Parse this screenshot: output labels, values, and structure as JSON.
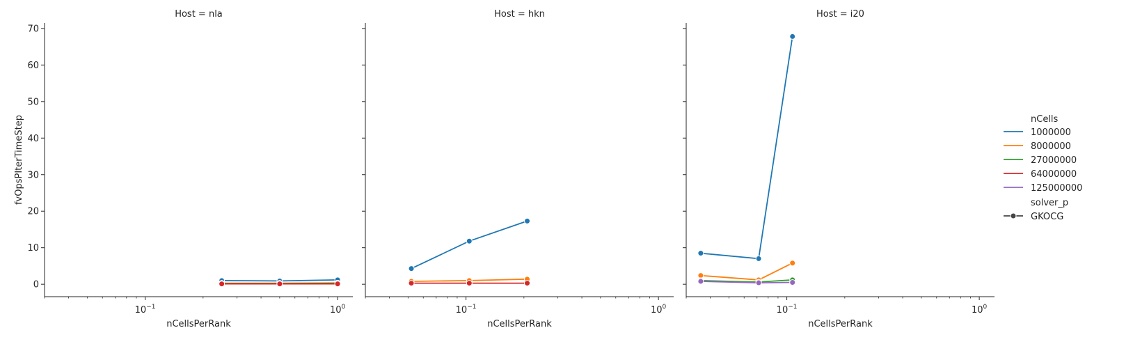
{
  "chart_data": {
    "type": "line",
    "facet_label": "Host",
    "xlabel": "nCellsPerRank",
    "ylabel": "fvOpsPIterTimeStep",
    "xscale": "log",
    "xlim": [
      0.03,
      1.2
    ],
    "ylim": [
      -3.4,
      71.5
    ],
    "yticks": [
      0,
      10,
      20,
      30,
      40,
      50,
      60,
      70
    ],
    "xticks": [
      {
        "value": 0.1,
        "base": "10",
        "exp": "−1"
      },
      {
        "value": 1,
        "base": "10",
        "exp": "0"
      }
    ],
    "legend": {
      "placement": "right",
      "hue_title": "nCells",
      "style_title": "solver_p",
      "style_entries": [
        "GKOCG"
      ]
    },
    "series_meta": [
      {
        "name": "1000000",
        "color": "#1f77b4"
      },
      {
        "name": "8000000",
        "color": "#ff7f0e"
      },
      {
        "name": "27000000",
        "color": "#2ca02c"
      },
      {
        "name": "64000000",
        "color": "#d62728"
      },
      {
        "name": "125000000",
        "color": "#9467bd"
      }
    ],
    "panels": [
      {
        "title": "Host = nla",
        "series": [
          {
            "name": "1000000",
            "x": [
              0.25,
              0.5,
              1.0
            ],
            "y": [
              1.0,
              0.9,
              1.2
            ]
          },
          {
            "name": "8000000",
            "x": [
              0.25,
              0.5,
              1.0
            ],
            "y": [
              0.3,
              0.3,
              0.35
            ]
          },
          {
            "name": "27000000",
            "x": [
              0.25,
              0.5,
              1.0
            ],
            "y": [
              0.2,
              0.2,
              0.25
            ]
          },
          {
            "name": "64000000",
            "x": [
              0.25,
              0.5,
              1.0
            ],
            "y": [
              0.1,
              0.1,
              0.1
            ]
          }
        ]
      },
      {
        "title": "Host = hkn",
        "series": [
          {
            "name": "1000000",
            "x": [
              0.052,
              0.104,
              0.208
            ],
            "y": [
              4.3,
              11.8,
              17.3
            ]
          },
          {
            "name": "8000000",
            "x": [
              0.052,
              0.104,
              0.208
            ],
            "y": [
              0.8,
              1.0,
              1.4
            ]
          },
          {
            "name": "64000000",
            "x": [
              0.052,
              0.104,
              0.208
            ],
            "y": [
              0.3,
              0.3,
              0.3
            ]
          }
        ]
      },
      {
        "title": "Host = i20",
        "series": [
          {
            "name": "1000000",
            "x": [
              0.0357,
              0.0714,
              0.107
            ],
            "y": [
              8.5,
              7.0,
              67.8
            ]
          },
          {
            "name": "8000000",
            "x": [
              0.0357,
              0.0714,
              0.107
            ],
            "y": [
              2.4,
              1.2,
              5.8
            ]
          },
          {
            "name": "27000000",
            "x": [
              0.0357,
              0.0714,
              0.107
            ],
            "y": [
              1.0,
              0.6,
              1.2
            ]
          },
          {
            "name": "125000000",
            "x": [
              0.0357,
              0.0714,
              0.107
            ],
            "y": [
              0.8,
              0.4,
              0.5
            ]
          }
        ]
      }
    ]
  }
}
